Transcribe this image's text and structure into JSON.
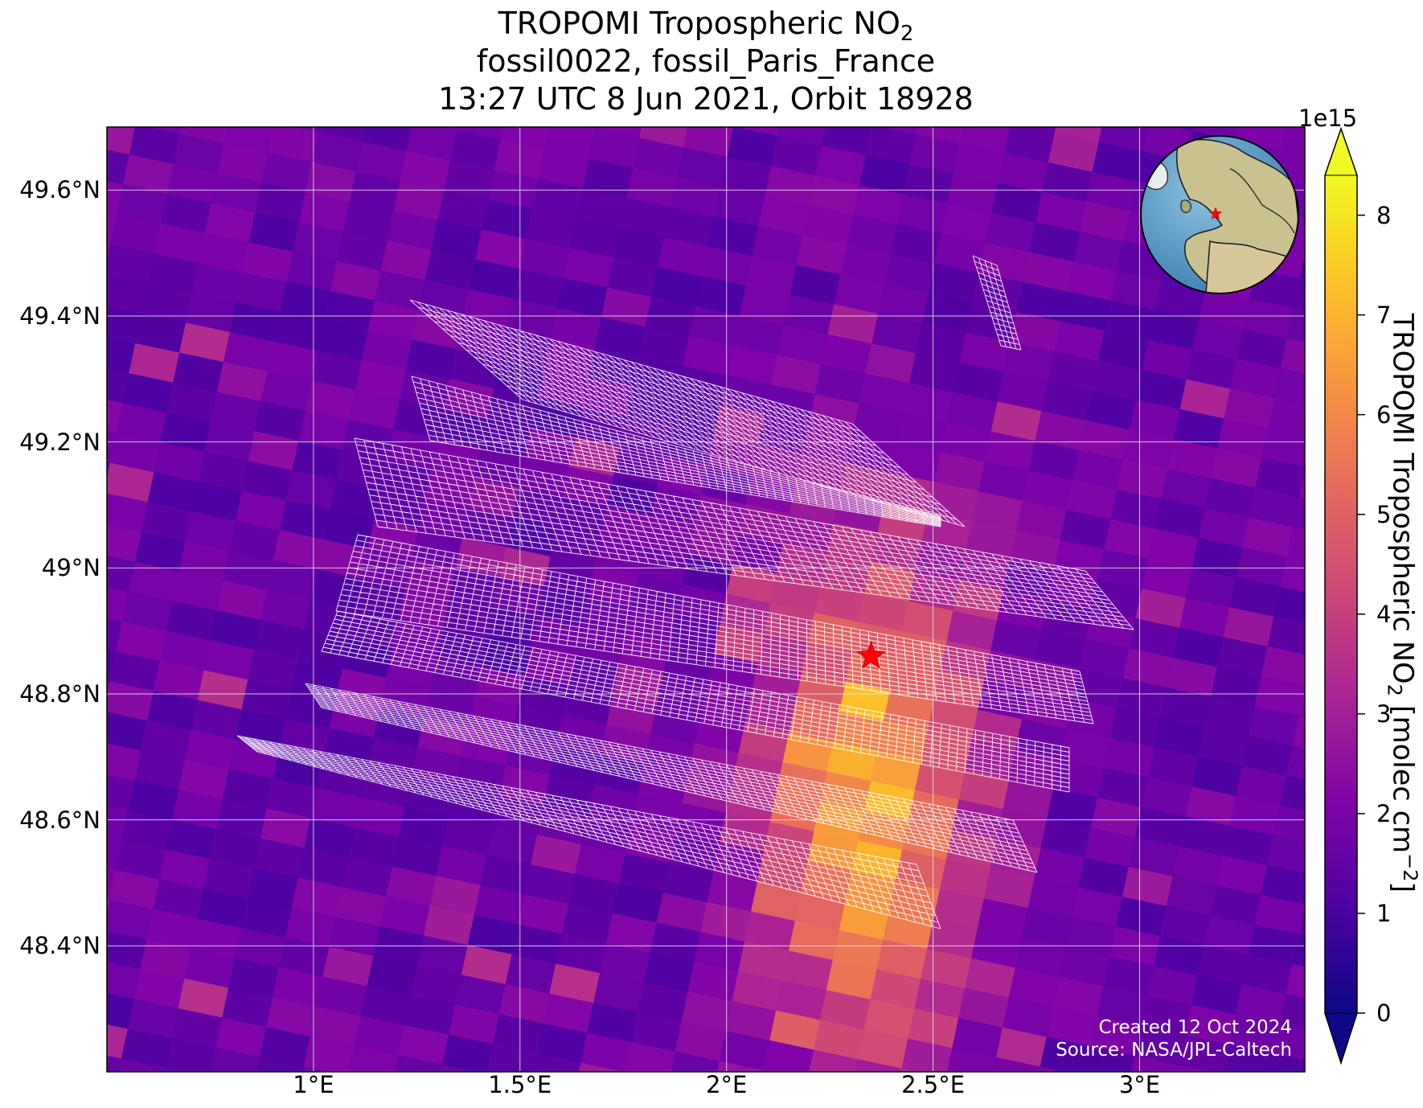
{
  "title": {
    "line1_prefix": "TROPOMI Tropospheric NO",
    "line1_sub": "2",
    "line2": "fossil0022, fossil_Paris_France",
    "line3": "13:27 UTC 8 Jun 2021, Orbit 18928"
  },
  "axes": {
    "lon_range": [
      0.5,
      3.4
    ],
    "lat_range": [
      48.2,
      49.7
    ],
    "lat_ticks": [
      {
        "value": 49.6,
        "label": "49.6°N"
      },
      {
        "value": 49.4,
        "label": "49.4°N"
      },
      {
        "value": 49.2,
        "label": "49.2°N"
      },
      {
        "value": 49.0,
        "label": "49°N"
      },
      {
        "value": 48.8,
        "label": "48.8°N"
      },
      {
        "value": 48.6,
        "label": "48.6°N"
      },
      {
        "value": 48.4,
        "label": "48.4°N"
      }
    ],
    "lon_ticks": [
      {
        "value": 1.0,
        "label": "1°E"
      },
      {
        "value": 1.5,
        "label": "1.5°E"
      },
      {
        "value": 2.0,
        "label": "2°E"
      },
      {
        "value": 2.5,
        "label": "2.5°E"
      },
      {
        "value": 3.0,
        "label": "3°E"
      }
    ]
  },
  "colorbar": {
    "colormap": "plasma",
    "range": [
      0,
      8.4
    ],
    "exponent_label": "1e15",
    "ticks": [
      "0",
      "1",
      "2",
      "3",
      "4",
      "5",
      "6",
      "7",
      "8"
    ],
    "label_prefix": "TROPOMI Tropospheric NO",
    "label_sub": "2",
    "label_suffix": " [molec cm",
    "label_sup": "−2",
    "label_end": "]"
  },
  "target": {
    "name": "Paris",
    "lon": 2.35,
    "lat": 48.86,
    "marker_color": "#ff0000"
  },
  "credits": {
    "created": "Created 12 Oct 2024",
    "source": "Source: NASA/JPL-Caltech"
  }
}
